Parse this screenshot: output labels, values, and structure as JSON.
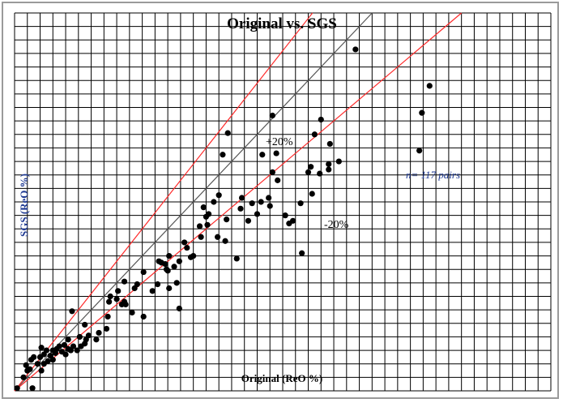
{
  "chart_data": {
    "type": "scatter",
    "title": "Original vs. SGS",
    "xlabel": "Original (ReO %)",
    "ylabel": "SGS (ReO %)",
    "xlim": [
      0,
      42
    ],
    "ylim": [
      0,
      28
    ],
    "grid": true,
    "grid_cells_x": 42,
    "grid_cells_y": 28,
    "annotations": {
      "plus": "+20%",
      "minus": "-20%",
      "n": "n= 117 pairs"
    },
    "reference_lines": [
      {
        "name": "1:1",
        "slope": 1.0,
        "color": "#555555"
      },
      {
        "name": "+20%",
        "slope": 1.2,
        "color": "#ff2a2a"
      },
      {
        "name": "-20%",
        "slope": 0.8,
        "color": "#ff2a2a"
      }
    ],
    "points": [
      [
        0.2,
        0.2
      ],
      [
        1.4,
        0.2
      ],
      [
        0.7,
        1.0
      ],
      [
        1.0,
        1.5
      ],
      [
        1.2,
        1.6
      ],
      [
        0.9,
        1.9
      ],
      [
        1.3,
        2.3
      ],
      [
        1.5,
        2.5
      ],
      [
        1.8,
        2.0
      ],
      [
        2.1,
        1.5
      ],
      [
        2.3,
        2.0
      ],
      [
        2.0,
        2.5
      ],
      [
        2.3,
        2.7
      ],
      [
        2.6,
        2.2
      ],
      [
        2.5,
        3.0
      ],
      [
        2.1,
        3.2
      ],
      [
        2.8,
        2.6
      ],
      [
        3.0,
        3.0
      ],
      [
        3.0,
        2.3
      ],
      [
        3.3,
        3.1
      ],
      [
        3.2,
        2.8
      ],
      [
        3.5,
        3.3
      ],
      [
        3.7,
        2.9
      ],
      [
        3.9,
        3.4
      ],
      [
        4.0,
        2.7
      ],
      [
        4.2,
        3.1
      ],
      [
        4.4,
        3.0
      ],
      [
        4.2,
        3.8
      ],
      [
        4.6,
        3.3
      ],
      [
        4.9,
        3.0
      ],
      [
        5.2,
        3.3
      ],
      [
        5.1,
        4.0
      ],
      [
        5.5,
        3.5
      ],
      [
        5.8,
        4.1
      ],
      [
        4.5,
        5.9
      ],
      [
        5.5,
        4.9
      ],
      [
        5.6,
        3.8
      ],
      [
        6.4,
        3.8
      ],
      [
        6.6,
        4.3
      ],
      [
        7.2,
        4.6
      ],
      [
        7.3,
        5.5
      ],
      [
        7.4,
        6.6
      ],
      [
        7.5,
        7.0
      ],
      [
        8.0,
        6.8
      ],
      [
        8.1,
        7.4
      ],
      [
        8.4,
        6.4
      ],
      [
        8.6,
        6.6
      ],
      [
        8.7,
        6.4
      ],
      [
        9.4,
        7.6
      ],
      [
        8.6,
        8.1
      ],
      [
        9.6,
        7.9
      ],
      [
        9.2,
        5.8
      ],
      [
        10.1,
        5.5
      ],
      [
        10.1,
        8.8
      ],
      [
        10.8,
        7.4
      ],
      [
        11.2,
        7.9
      ],
      [
        11.3,
        9.6
      ],
      [
        11.5,
        9.5
      ],
      [
        11.9,
        9.0
      ],
      [
        11.8,
        9.4
      ],
      [
        12.0,
        8.9
      ],
      [
        12.1,
        7.6
      ],
      [
        12.5,
        9.2
      ],
      [
        12.9,
        6.1
      ],
      [
        12.9,
        9.6
      ],
      [
        12.7,
        8.0
      ],
      [
        12.1,
        10.0
      ],
      [
        13.5,
        10.6
      ],
      [
        13.8,
        9.9
      ],
      [
        13.3,
        11.0
      ],
      [
        14.0,
        10.0
      ],
      [
        14.6,
        11.4
      ],
      [
        14.5,
        12.2
      ],
      [
        15.0,
        12.9
      ],
      [
        14.8,
        13.6
      ],
      [
        15.2,
        13.1
      ],
      [
        15.1,
        12.3
      ],
      [
        15.6,
        14.0
      ],
      [
        15.9,
        11.4
      ],
      [
        16.6,
        12.7
      ],
      [
        16.0,
        14.5
      ],
      [
        16.3,
        17.5
      ],
      [
        16.7,
        19.1
      ],
      [
        16.5,
        11.1
      ],
      [
        17.4,
        9.8
      ],
      [
        17.7,
        13.5
      ],
      [
        17.8,
        14.3
      ],
      [
        18.3,
        12.6
      ],
      [
        18.6,
        13.9
      ],
      [
        19.0,
        13.1
      ],
      [
        19.4,
        17.5
      ],
      [
        19.9,
        14.3
      ],
      [
        20.0,
        13.7
      ],
      [
        19.3,
        14.0
      ],
      [
        20.2,
        16.2
      ],
      [
        20.5,
        17.6
      ],
      [
        20.6,
        15.6
      ],
      [
        21.2,
        13.0
      ],
      [
        21.5,
        12.4
      ],
      [
        21.8,
        12.6
      ],
      [
        22.4,
        13.9
      ],
      [
        23.0,
        16.2
      ],
      [
        23.2,
        16.6
      ],
      [
        23.3,
        14.6
      ],
      [
        23.9,
        16.1
      ],
      [
        23.5,
        19.0
      ],
      [
        24.0,
        20.1
      ],
      [
        24.6,
        16.4
      ],
      [
        24.6,
        16.8
      ],
      [
        24.7,
        18.3
      ],
      [
        22.5,
        10.2
      ],
      [
        20.2,
        20.4
      ],
      [
        25.4,
        17.0
      ],
      [
        26.7,
        25.3
      ],
      [
        31.9,
        20.6
      ],
      [
        31.7,
        17.8
      ],
      [
        32.5,
        22.6
      ]
    ]
  }
}
